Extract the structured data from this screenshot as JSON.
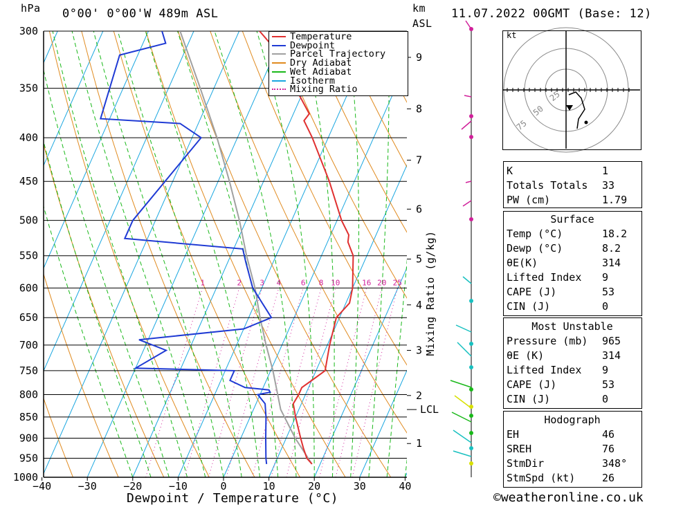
{
  "header": {
    "location": "0°00' 0°00'W 489m ASL",
    "datetime": "11.07.2022 00GMT (Base: 12)",
    "hpa_label": "hPa",
    "km_label": "km",
    "asl_label": "ASL"
  },
  "chart_data": {
    "type": "skew-t",
    "xlabel": "Dewpoint / Temperature (°C)",
    "ylabel_right": "Mixing Ratio (g/kg)",
    "pressure_ticks": [
      300,
      350,
      400,
      450,
      500,
      550,
      600,
      650,
      700,
      750,
      800,
      850,
      900,
      950,
      1000
    ],
    "temp_ticks": [
      -40,
      -30,
      -20,
      -10,
      0,
      10,
      20,
      30,
      40
    ],
    "temp_tick_labels": [
      "−40",
      "−30",
      "−20",
      "−10",
      "0",
      "10",
      "20",
      "30",
      "40"
    ],
    "altitude_km": [
      {
        "km": "1",
        "p": 913
      },
      {
        "km": "2",
        "p": 802
      },
      {
        "km": "3",
        "p": 710
      },
      {
        "km": "4",
        "p": 628
      },
      {
        "km": "5",
        "p": 555
      },
      {
        "km": "6",
        "p": 485
      },
      {
        "km": "7",
        "p": 425
      },
      {
        "km": "8",
        "p": 370
      },
      {
        "km": "9",
        "p": 322
      }
    ],
    "lcl": {
      "label": "LCL",
      "p": 833
    },
    "mixing_ratio_labels": [
      "1",
      "2",
      "3",
      "4",
      "6",
      "8",
      "10",
      "16",
      "20",
      "25"
    ],
    "mixing_ratio_values": [
      1,
      2,
      3,
      4,
      6,
      8,
      10,
      16,
      20,
      25
    ],
    "legend": [
      {
        "name": "Temperature",
        "color": "#e03030",
        "style": "solid"
      },
      {
        "name": "Dewpoint",
        "color": "#1f3ad4",
        "style": "solid"
      },
      {
        "name": "Parcel Trajectory",
        "color": "#a0a0a0",
        "style": "solid"
      },
      {
        "name": "Dry Adiabat",
        "color": "#e08a1e",
        "style": "solid"
      },
      {
        "name": "Wet Adiabat",
        "color": "#19b819",
        "style": "solid"
      },
      {
        "name": "Isotherm",
        "color": "#18a6e0",
        "style": "solid"
      },
      {
        "name": "Mixing Ratio",
        "color": "#d0209a",
        "style": "dotted"
      }
    ],
    "temperature": [
      {
        "p": 965,
        "t": 18.2
      },
      {
        "p": 950,
        "t": 16.5
      },
      {
        "p": 925,
        "t": 14.8
      },
      {
        "p": 900,
        "t": 13.2
      },
      {
        "p": 850,
        "t": 10.0
      },
      {
        "p": 820,
        "t": 8.2
      },
      {
        "p": 800,
        "t": 8.5
      },
      {
        "p": 785,
        "t": 8.5
      },
      {
        "p": 770,
        "t": 10.0
      },
      {
        "p": 750,
        "t": 12.0
      },
      {
        "p": 700,
        "t": 10.5
      },
      {
        "p": 650,
        "t": 9.3
      },
      {
        "p": 625,
        "t": 10.8
      },
      {
        "p": 600,
        "t": 10.0
      },
      {
        "p": 550,
        "t": 7.0
      },
      {
        "p": 530,
        "t": 4.5
      },
      {
        "p": 520,
        "t": 4.0
      },
      {
        "p": 500,
        "t": 1.0
      },
      {
        "p": 450,
        "t": -5.5
      },
      {
        "p": 400,
        "t": -13.5
      },
      {
        "p": 382,
        "t": -17.0
      },
      {
        "p": 375,
        "t": -16.5
      },
      {
        "p": 350,
        "t": -22.0
      },
      {
        "p": 320,
        "t": -29.0
      },
      {
        "p": 310,
        "t": -32.0
      },
      {
        "p": 300,
        "t": -35.5
      }
    ],
    "dewpoint": [
      {
        "p": 965,
        "t": 8.2
      },
      {
        "p": 950,
        "t": 7.5
      },
      {
        "p": 900,
        "t": 5.5
      },
      {
        "p": 850,
        "t": 3.5
      },
      {
        "p": 820,
        "t": 2.0
      },
      {
        "p": 800,
        "t": -0.5
      },
      {
        "p": 795,
        "t": 2.0
      },
      {
        "p": 790,
        "t": 1.5
      },
      {
        "p": 785,
        "t": -4.0
      },
      {
        "p": 770,
        "t": -8.0
      },
      {
        "p": 750,
        "t": -8.0
      },
      {
        "p": 745,
        "t": -30.0
      },
      {
        "p": 710,
        "t": -25.0
      },
      {
        "p": 690,
        "t": -32.0
      },
      {
        "p": 670,
        "t": -10.0
      },
      {
        "p": 650,
        "t": -5.0
      },
      {
        "p": 600,
        "t": -12.0
      },
      {
        "p": 560,
        "t": -16.0
      },
      {
        "p": 540,
        "t": -18.0
      },
      {
        "p": 525,
        "t": -45.0
      },
      {
        "p": 500,
        "t": -45.0
      },
      {
        "p": 400,
        "t": -38.0
      },
      {
        "p": 385,
        "t": -44.0
      },
      {
        "p": 380,
        "t": -62.0
      },
      {
        "p": 320,
        "t": -64.0
      },
      {
        "p": 310,
        "t": -55.0
      },
      {
        "p": 300,
        "t": -57.0
      }
    ],
    "parcel": [
      {
        "p": 965,
        "t": 18.2
      },
      {
        "p": 900,
        "t": 12.0
      },
      {
        "p": 833,
        "t": 6.0
      },
      {
        "p": 750,
        "t": 0.5
      },
      {
        "p": 700,
        "t": -3.5
      },
      {
        "p": 650,
        "t": -7.5
      },
      {
        "p": 600,
        "t": -11.5
      },
      {
        "p": 550,
        "t": -16.5
      },
      {
        "p": 500,
        "t": -21.5
      },
      {
        "p": 450,
        "t": -27.5
      },
      {
        "p": 400,
        "t": -34.5
      },
      {
        "p": 350,
        "t": -43.0
      },
      {
        "p": 300,
        "t": -53.0
      }
    ]
  },
  "hodograph": {
    "unit_label": "kt",
    "ring_labels": [
      "25",
      "50",
      "75"
    ]
  },
  "indices": {
    "top": [
      {
        "label": "K",
        "value": "1"
      },
      {
        "label": "Totals Totals",
        "value": "33"
      },
      {
        "label": "PW (cm)",
        "value": "1.79"
      }
    ],
    "surface": {
      "title": "Surface",
      "rows": [
        {
          "label": "Temp (°C)",
          "value": "18.2"
        },
        {
          "label": "Dewp (°C)",
          "value": "8.2"
        },
        {
          "label": "θE(K)",
          "value": "314"
        },
        {
          "label": "Lifted Index",
          "value": "9"
        },
        {
          "label": "CAPE (J)",
          "value": "53"
        },
        {
          "label": "CIN (J)",
          "value": "0"
        }
      ]
    },
    "most_unstable": {
      "title": "Most Unstable",
      "rows": [
        {
          "label": "Pressure (mb)",
          "value": "965"
        },
        {
          "label": "θE (K)",
          "value": "314"
        },
        {
          "label": "Lifted Index",
          "value": "9"
        },
        {
          "label": "CAPE (J)",
          "value": "53"
        },
        {
          "label": "CIN (J)",
          "value": "0"
        }
      ]
    },
    "hodo": {
      "title": "Hodograph",
      "rows": [
        {
          "label": "EH",
          "value": "46"
        },
        {
          "label": "SREH",
          "value": "76"
        },
        {
          "label": "StmDir",
          "value": "348°"
        },
        {
          "label": "StmSpd (kt)",
          "value": "26"
        }
      ]
    }
  },
  "footer": {
    "text": "©weatheronline.co.uk"
  }
}
